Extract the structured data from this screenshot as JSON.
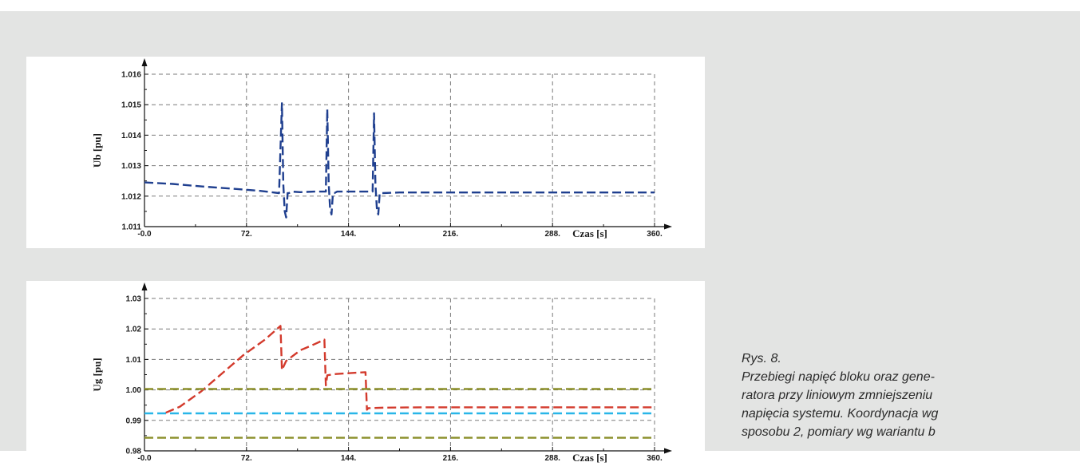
{
  "caption": {
    "number": "Rys. 8.",
    "lines": [
      "Przebiegi napięć bloku oraz gene-",
      "ratora przy liniowym zmniejszeniu",
      "napięcia systemu. Koordynacja wg",
      "sposobu 2, pomiary wg wariantu b"
    ]
  },
  "colors": {
    "ub": "#1f3f8f",
    "ug": "#d33a2c",
    "ref_olive": "#8b8f2a",
    "ref_cyan": "#29b6e8"
  },
  "chart_data": [
    {
      "type": "line",
      "xlabel": "Czas [s]",
      "ylabel": "Ub [pu]",
      "xlim": [
        0,
        360
      ],
      "ylim": [
        1.011,
        1.016
      ],
      "xticks": [
        "-0.0",
        "72.",
        "144.",
        "216.",
        "288.",
        "360."
      ],
      "yticks": [
        "1.011",
        "1.012",
        "1.013",
        "1.014",
        "1.015",
        "1.016"
      ],
      "grid": true,
      "series": [
        {
          "color": "#1f3f8f",
          "dash": "dashed",
          "x": [
            0,
            20,
            40,
            60,
            80,
            95,
            97,
            98,
            99,
            100,
            101,
            102,
            104,
            110,
            120,
            128,
            129,
            130,
            131,
            132,
            133,
            134,
            136,
            145,
            155,
            161,
            162,
            163,
            164,
            165,
            166,
            168,
            180,
            220,
            260,
            300,
            360
          ],
          "y": [
            1.01245,
            1.0124,
            1.01232,
            1.01225,
            1.01218,
            1.0121,
            1.01505,
            1.0124,
            1.0115,
            1.0113,
            1.0121,
            1.0121,
            1.01215,
            1.01213,
            1.01215,
            1.01215,
            1.01485,
            1.0124,
            1.0116,
            1.0114,
            1.0121,
            1.0121,
            1.01215,
            1.01215,
            1.01215,
            1.01215,
            1.01472,
            1.0124,
            1.0116,
            1.0114,
            1.0121,
            1.0121,
            1.01212,
            1.01212,
            1.01212,
            1.01212,
            1.01212
          ]
        }
      ]
    },
    {
      "type": "line",
      "xlabel": "Czas [s]",
      "ylabel": "Ug [pu]",
      "xlim": [
        0,
        360
      ],
      "ylim": [
        0.98,
        1.03
      ],
      "xticks": [
        "-0.0",
        "72.",
        "144.",
        "216.",
        "288.",
        "360."
      ],
      "yticks": [
        "0.98",
        "0.99",
        "1.00",
        "1.01",
        "1.02",
        "1.03"
      ],
      "grid": true,
      "series": [
        {
          "color": "#d33a2c",
          "dash": "dashed",
          "x": [
            15,
            25,
            40,
            55,
            70,
            85,
            96,
            97,
            100,
            110,
            120,
            127,
            128,
            129,
            135,
            145,
            156,
            157,
            158,
            170,
            200,
            250,
            300,
            360
          ],
          "y": [
            0.9925,
            0.9945,
            0.9995,
            1.0055,
            1.0115,
            1.0165,
            1.021,
            1.0065,
            1.0095,
            1.013,
            1.015,
            1.0165,
            1.0015,
            1.0048,
            1.0052,
            1.0055,
            1.0058,
            0.9935,
            0.994,
            0.9942,
            0.9943,
            0.9943,
            0.9943,
            0.9943
          ]
        },
        {
          "color": "#8b8f2a",
          "dash": "dashed",
          "x": [
            0,
            360
          ],
          "y": [
            1.0003,
            1.0003
          ]
        },
        {
          "color": "#29b6e8",
          "dash": "dashed",
          "x": [
            0,
            360
          ],
          "y": [
            0.9923,
            0.9923
          ]
        },
        {
          "color": "#8b8f2a",
          "dash": "dashed",
          "x": [
            0,
            360
          ],
          "y": [
            0.9843,
            0.9843
          ]
        }
      ]
    }
  ]
}
